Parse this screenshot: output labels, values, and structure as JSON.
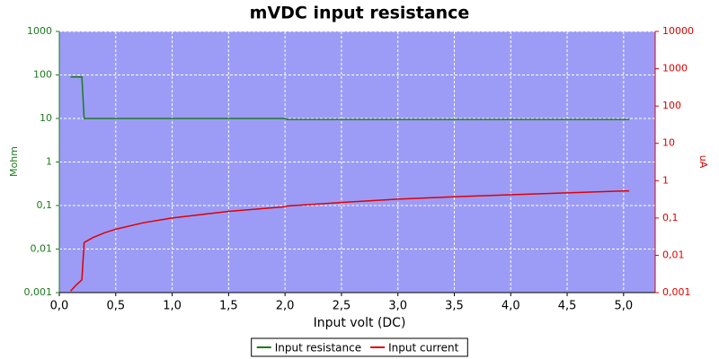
{
  "chart_data": {
    "type": "line",
    "title": "mVDC input resistance",
    "x_label": "Input volt (DC)",
    "y_label": "Mohm",
    "y2_label": "uA",
    "x": [
      0.1,
      0.15,
      0.2,
      0.22,
      0.3,
      0.4,
      0.5,
      0.75,
      1.0,
      1.5,
      2.0,
      2.02,
      2.5,
      3.0,
      3.5,
      4.0,
      4.5,
      5.0,
      5.05
    ],
    "series": [
      {
        "name": "Input resistance",
        "color": "#1e7a1e",
        "axis": "y",
        "values": [
          90,
          90,
          90,
          10,
          10,
          10,
          10,
          10,
          10,
          10,
          10,
          9.5,
          9.5,
          9.5,
          9.5,
          9.5,
          9.5,
          9.5,
          9.5
        ]
      },
      {
        "name": "Input current",
        "color": "#e00000",
        "axis": "y2",
        "values": [
          0.0011,
          0.0016,
          0.0022,
          0.022,
          0.03,
          0.04,
          0.05,
          0.075,
          0.1,
          0.15,
          0.2,
          0.21,
          0.26,
          0.32,
          0.37,
          0.42,
          0.47,
          0.53,
          0.53
        ]
      }
    ],
    "xlim": [
      0,
      5.28
    ],
    "xticks": [
      {
        "value": 0,
        "label": "0,0"
      },
      {
        "value": 0.5,
        "label": "0,5"
      },
      {
        "value": 1,
        "label": "1,0"
      },
      {
        "value": 1.5,
        "label": "1,5"
      },
      {
        "value": 2,
        "label": "2,0"
      },
      {
        "value": 2.5,
        "label": "2,5"
      },
      {
        "value": 3,
        "label": "3,0"
      },
      {
        "value": 3.5,
        "label": "3,5"
      },
      {
        "value": 4,
        "label": "4,0"
      },
      {
        "value": 4.5,
        "label": "4,5"
      },
      {
        "value": 5,
        "label": "5,0"
      }
    ],
    "ylim": [
      0.001,
      1000
    ],
    "yticks": [
      {
        "value": 0.001,
        "label": "0,001"
      },
      {
        "value": 0.01,
        "label": "0,01"
      },
      {
        "value": 0.1,
        "label": "0,1"
      },
      1,
      10,
      100,
      1000
    ],
    "y2lim": [
      0.001,
      10000
    ],
    "y2ticks": [
      {
        "value": 0.001,
        "label": "0,001"
      },
      {
        "value": 0.01,
        "label": "0,01"
      },
      {
        "value": 0.1,
        "label": "0,1"
      },
      1,
      10,
      100,
      1000,
      10000
    ],
    "ylog": true,
    "y2log": true,
    "grid": true,
    "legend": "bottom"
  }
}
